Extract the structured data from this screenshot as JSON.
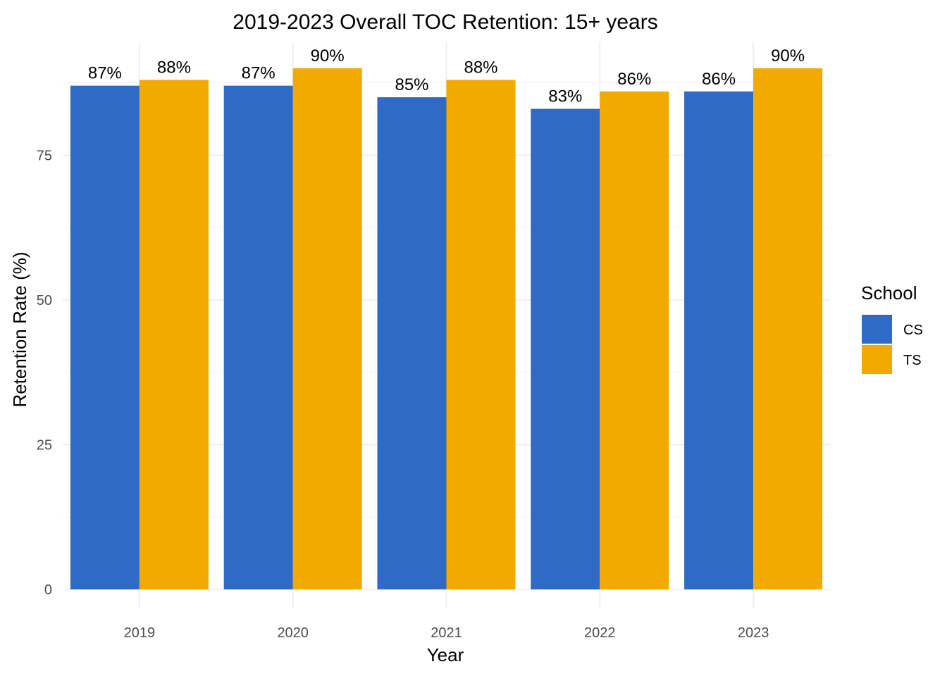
{
  "chart_data": {
    "type": "bar",
    "title": "2019-2023 Overall TOC Retention: 15+ years",
    "xlabel": "Year",
    "ylabel": "Retention Rate (%)",
    "categories": [
      "2019",
      "2020",
      "2021",
      "2022",
      "2023"
    ],
    "series": [
      {
        "name": "CS",
        "color": "#2F6AC6",
        "values": [
          87,
          87,
          85,
          83,
          86
        ],
        "labels": [
          "87%",
          "87%",
          "85%",
          "83%",
          "86%"
        ]
      },
      {
        "name": "TS",
        "color": "#F2AA00",
        "values": [
          88,
          90,
          88,
          86,
          90
        ],
        "labels": [
          "88%",
          "90%",
          "88%",
          "86%",
          "90%"
        ]
      }
    ],
    "ylim": [
      0,
      94.5
    ],
    "yticks": [
      "0",
      "25",
      "50",
      "75"
    ],
    "grid": true,
    "legend": {
      "title": "School",
      "position": "right"
    }
  }
}
